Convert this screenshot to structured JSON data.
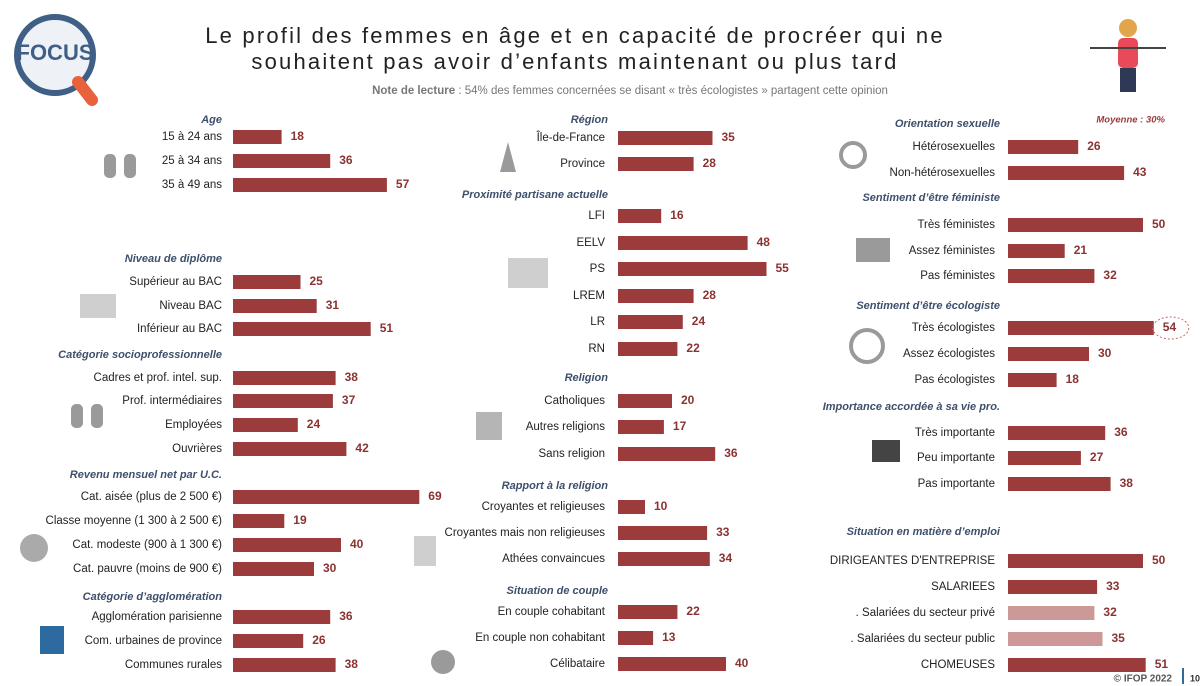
{
  "title_lines": [
    "Le profil des femmes en âge et en capacité de procréer qui ne",
    "souhaitent pas avoir d’enfants maintenant ou plus tard"
  ],
  "note_label": "Note de lecture",
  "note_text": " : 54% des femmes concernées se disant « très écologistes » partagent cette opinion",
  "logo_text": "FOCUS",
  "average_label": "Moyenne : 30%",
  "footer": "© IFOP 2022",
  "page_number": "10",
  "chart_data": [
    {
      "type": "bar",
      "title": "Age",
      "categories": [
        "15 à 24 ans",
        "25 à 34 ans",
        "35 à 49 ans"
      ],
      "values": [
        18,
        36,
        57
      ],
      "color": "#9b3b3b"
    },
    {
      "type": "bar",
      "title": "Niveau de diplôme",
      "categories": [
        "Supérieur au BAC",
        "Niveau BAC",
        "Inférieur au BAC"
      ],
      "values": [
        25,
        31,
        51
      ],
      "color": "#9b3b3b"
    },
    {
      "type": "bar",
      "title": "Catégorie socioprofessionnelle",
      "categories": [
        "Cadres et prof. intel. sup.",
        "Prof. intermédiaires",
        "Employées",
        "Ouvrières"
      ],
      "values": [
        38,
        37,
        24,
        42
      ],
      "color": "#9b3b3b"
    },
    {
      "type": "bar",
      "title": "Revenu mensuel net par U.C.",
      "categories": [
        "Cat. aisée (plus de 2 500 €)",
        "Classe moyenne (1 300 à 2 500 €)",
        "Cat. modeste (900 à 1 300 €)",
        "Cat. pauvre (moins de 900 €)"
      ],
      "values": [
        69,
        19,
        40,
        30
      ],
      "color": "#9b3b3b"
    },
    {
      "type": "bar",
      "title": "Catégorie d’agglomération",
      "categories": [
        "Agglomération parisienne",
        "Com. urbaines de province",
        "Communes rurales"
      ],
      "values": [
        36,
        26,
        38
      ],
      "color": "#9b3b3b"
    },
    {
      "type": "bar",
      "title": "Région",
      "categories": [
        "Île-de-France",
        "Province"
      ],
      "values": [
        35,
        28
      ],
      "color": "#9b3b3b"
    },
    {
      "type": "bar",
      "title": "Proximité partisane actuelle",
      "categories": [
        "LFI",
        "EELV",
        "PS",
        "LREM",
        "LR",
        "RN"
      ],
      "values": [
        16,
        48,
        55,
        28,
        24,
        22
      ],
      "color": "#9b3b3b"
    },
    {
      "type": "bar",
      "title": "Religion",
      "categories": [
        "Catholiques",
        "Autres religions",
        "Sans religion"
      ],
      "values": [
        20,
        17,
        36
      ],
      "color": "#9b3b3b"
    },
    {
      "type": "bar",
      "title": "Rapport à la religion",
      "categories": [
        "Croyantes et religieuses",
        "Croyantes mais non religieuses",
        "Athées convaincues"
      ],
      "values": [
        10,
        33,
        34
      ],
      "color": "#9b3b3b"
    },
    {
      "type": "bar",
      "title": "Situation de couple",
      "categories": [
        "En couple cohabitant",
        "En couple non cohabitant",
        "Célibataire"
      ],
      "values": [
        22,
        13,
        40
      ],
      "color": "#9b3b3b"
    },
    {
      "type": "bar",
      "title": "Orientation sexuelle",
      "categories": [
        "Hétérosexuelles",
        "Non-hétérosexuelles"
      ],
      "values": [
        26,
        43
      ],
      "color": "#9b3b3b"
    },
    {
      "type": "bar",
      "title": "Sentiment d’être féministe",
      "categories": [
        "Très féministes",
        "Assez féministes",
        "Pas féministes"
      ],
      "values": [
        50,
        21,
        32
      ],
      "color": "#9b3b3b"
    },
    {
      "type": "bar",
      "title": "Sentiment d’être écologiste",
      "categories": [
        "Très écologistes",
        "Assez écologistes",
        "Pas écologistes"
      ],
      "values": [
        54,
        30,
        18
      ],
      "color": "#9b3b3b"
    },
    {
      "type": "bar",
      "title": "Importance accordée à sa vie pro.",
      "categories": [
        "Très importante",
        "Peu importante",
        "Pas importante"
      ],
      "values": [
        36,
        27,
        38
      ],
      "color": "#9b3b3b"
    },
    {
      "type": "bar",
      "title": "Situation en matière d’emploi",
      "categories": [
        "DIRIGEANTES D'ENTREPRISE",
        "SALARIEES",
        ". Salariées du secteur privé",
        ". Salariées du secteur public",
        "CHOMEUSES"
      ],
      "values": [
        50,
        33,
        32,
        35,
        51
      ],
      "colors": [
        "#9b3b3b",
        "#9b3b3b",
        "#cc9898",
        "#cc9898",
        "#9b3b3b"
      ]
    }
  ]
}
